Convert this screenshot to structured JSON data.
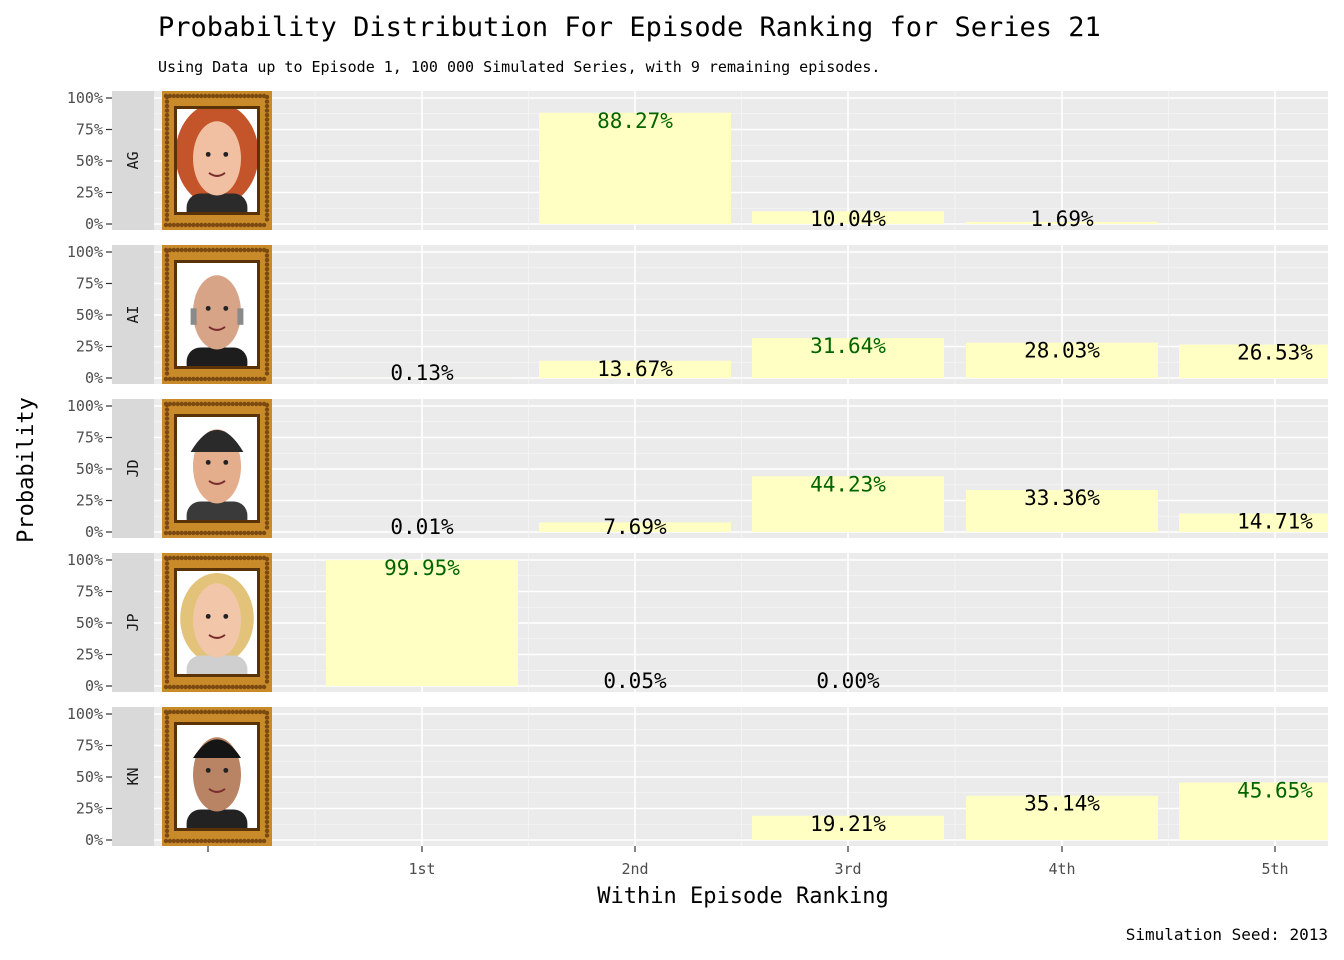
{
  "chart_data": {
    "type": "bar",
    "title": "Probability Distribution For Episode Ranking for Series 21",
    "subtitle": "Using Data up to Episode 1, 100 000 Simulated Series, with 9 remaining episodes.",
    "xlabel": "Within Episode Ranking",
    "ylabel": "Probability",
    "caption": "Simulation Seed: 2013",
    "categories": [
      "1st",
      "2nd",
      "3rd",
      "4th",
      "5th"
    ],
    "y_ticks": [
      "0%",
      "25%",
      "50%",
      "75%",
      "100%"
    ],
    "ylim": [
      0,
      1
    ],
    "bar_color": "#ffffc4",
    "highlight_color": "#006400",
    "normal_label_color": "#000000",
    "panel_background": "#ebebeb",
    "strip_background": "#d9d9d9",
    "frame_color": "#c98a2a",
    "grid": true,
    "facets": [
      {
        "label": "AG",
        "values": [
          null,
          0.8827,
          0.1004,
          0.0169,
          null
        ],
        "labels": [
          "",
          "88.27%",
          "10.04%",
          "1.69%",
          ""
        ],
        "max_index": 1,
        "portrait": "red-haired-woman"
      },
      {
        "label": "AI",
        "values": [
          0.0013,
          0.1367,
          0.3164,
          0.2803,
          0.2653
        ],
        "labels": [
          "0.13%",
          "13.67%",
          "31.64%",
          "28.03%",
          "26.53%"
        ],
        "max_index": 2,
        "portrait": "bald-man"
      },
      {
        "label": "JD",
        "values": [
          0.0001,
          0.0769,
          0.4423,
          0.3336,
          0.1471
        ],
        "labels": [
          "0.01%",
          "7.69%",
          "44.23%",
          "33.36%",
          "14.71%"
        ],
        "max_index": 2,
        "portrait": "man-backwards-cap"
      },
      {
        "label": "JP",
        "values": [
          0.9995,
          0.0005,
          0.0,
          null,
          null
        ],
        "labels": [
          "99.95%",
          "0.05%",
          "0.00%",
          "",
          ""
        ],
        "max_index": 0,
        "portrait": "blonde-woman"
      },
      {
        "label": "KN",
        "values": [
          null,
          null,
          0.1921,
          0.3514,
          0.4565
        ],
        "labels": [
          "",
          "",
          "19.21%",
          "35.14%",
          "45.65%"
        ],
        "max_index": 4,
        "portrait": "dark-haired-man"
      }
    ]
  }
}
